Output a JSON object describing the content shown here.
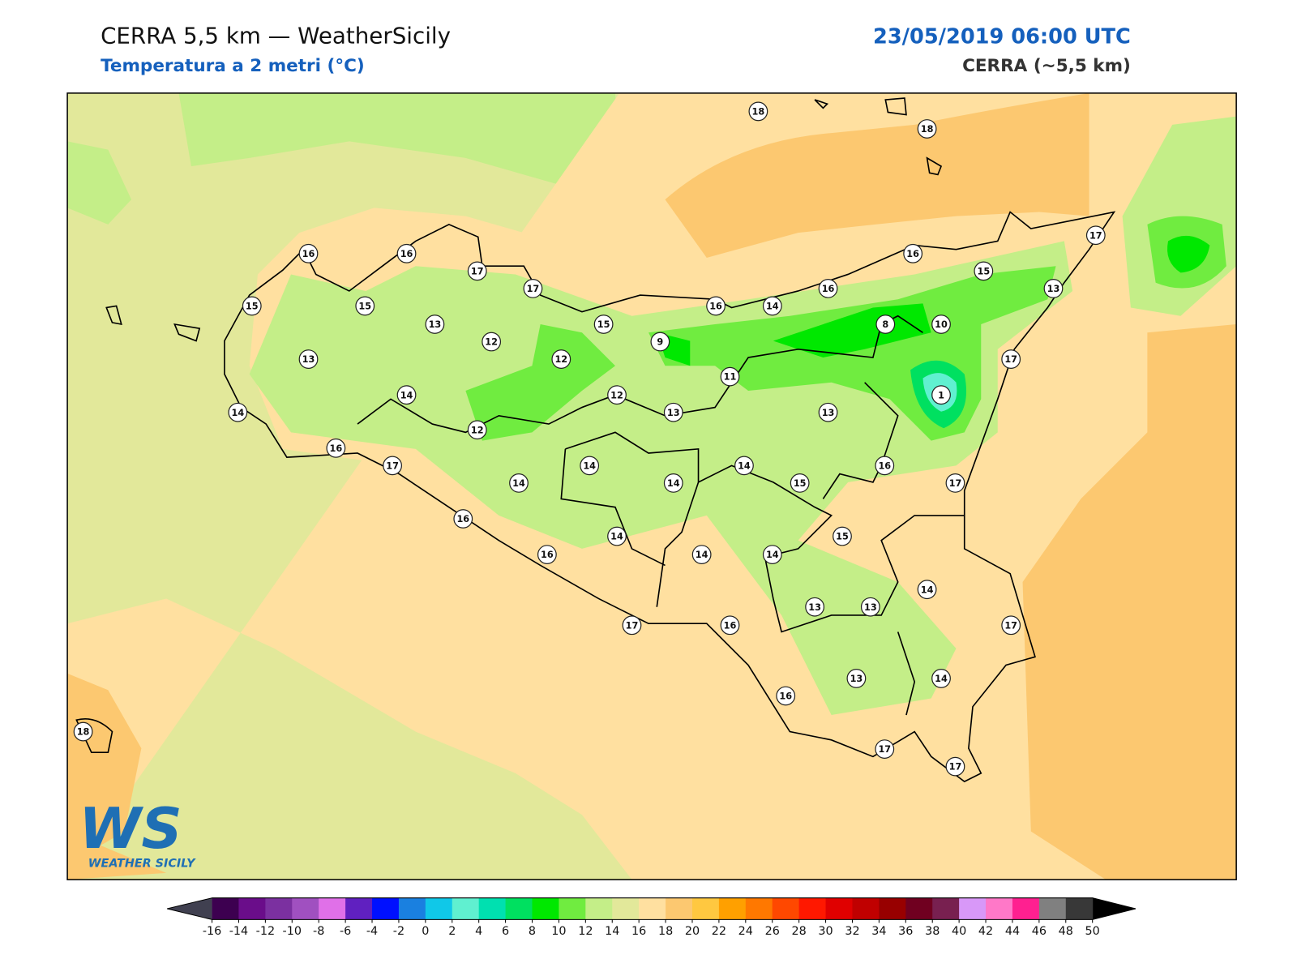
{
  "header": {
    "title": "CERRA 5,5 km — WeatherSicily",
    "subtitle": "Temperatura a 2 metri (°C)",
    "date": "23/05/2019 06:00 UTC",
    "model": "CERRA (~5,5 km)"
  },
  "logo": {
    "mark": "WS",
    "name": "WEATHER SICILY"
  },
  "stations": {
    "values": [
      18,
      18,
      16,
      16,
      17,
      17,
      15,
      15,
      13,
      12,
      12,
      15,
      9,
      16,
      14,
      16,
      16,
      15,
      13,
      17,
      8,
      10,
      17,
      1,
      13,
      14,
      14,
      16,
      12,
      12,
      11,
      13,
      13,
      17,
      14,
      14,
      14,
      14,
      15,
      16,
      17,
      16,
      14,
      15,
      16,
      14,
      14,
      14,
      13,
      13,
      17,
      17,
      16,
      13,
      14,
      16,
      18,
      17,
      17
    ]
  },
  "colorbar": {
    "ticks": [
      -16,
      -14,
      -12,
      -10,
      -8,
      -6,
      -4,
      -2,
      0,
      2,
      4,
      6,
      8,
      10,
      12,
      14,
      16,
      18,
      20,
      22,
      24,
      26,
      28,
      30,
      32,
      34,
      36,
      38,
      40,
      42,
      44,
      46,
      48,
      50
    ],
    "colors": [
      "#3d0050",
      "#6a0d8a",
      "#7b30a0",
      "#a050c0",
      "#e070e8",
      "#6020c0",
      "#0010ff",
      "#1a80e0",
      "#10c8e8",
      "#60f0d0",
      "#00e0b0",
      "#00e060",
      "#00e800",
      "#70ec40",
      "#c4ee88",
      "#e2e89a",
      "#ffe0a0",
      "#fcc870",
      "#ffc840",
      "#ffa000",
      "#ff7800",
      "#ff4800",
      "#ff1800",
      "#e00000",
      "#c00000",
      "#980000",
      "#700020",
      "#782050",
      "#d898f8",
      "#ff78c8",
      "#ff2090",
      "#808080",
      "#383838"
    ],
    "under_color": "#404050",
    "over_color": "#000000"
  }
}
